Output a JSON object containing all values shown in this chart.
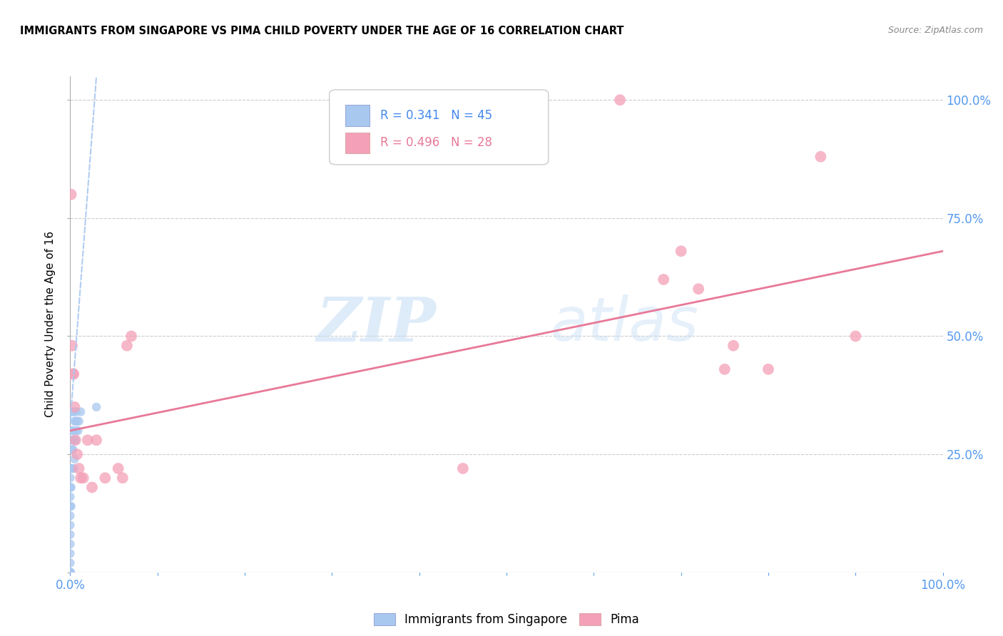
{
  "title": "IMMIGRANTS FROM SINGAPORE VS PIMA CHILD POVERTY UNDER THE AGE OF 16 CORRELATION CHART",
  "source": "Source: ZipAtlas.com",
  "ylabel": "Child Poverty Under the Age of 16",
  "legend_label_1": "Immigrants from Singapore",
  "legend_label_2": "Pima",
  "r1": 0.341,
  "n1": 45,
  "r2": 0.496,
  "n2": 28,
  "color1": "#a8c8f0",
  "color2": "#f4a0b8",
  "trendline1_color": "#a8c8f0",
  "trendline2_color": "#e87898",
  "blue_x": [
    0.0,
    0.0,
    0.0,
    0.0,
    0.0,
    0.0,
    0.0,
    0.0,
    0.0,
    0.0,
    0.0,
    0.0,
    0.0,
    0.0,
    0.0,
    0.0,
    0.0,
    0.0,
    0.0,
    0.0,
    0.001,
    0.001,
    0.001,
    0.001,
    0.002,
    0.002,
    0.002,
    0.003,
    0.003,
    0.003,
    0.004,
    0.004,
    0.004,
    0.005,
    0.005,
    0.005,
    0.006,
    0.006,
    0.007,
    0.007,
    0.008,
    0.009,
    0.01,
    0.012,
    0.03
  ],
  "blue_y": [
    0.0,
    0.0,
    0.0,
    0.0,
    0.0,
    0.0,
    0.0,
    0.0,
    0.0,
    0.0,
    0.02,
    0.04,
    0.06,
    0.08,
    0.1,
    0.12,
    0.14,
    0.16,
    0.18,
    0.2,
    0.14,
    0.18,
    0.22,
    0.28,
    0.22,
    0.26,
    0.3,
    0.26,
    0.3,
    0.34,
    0.22,
    0.28,
    0.34,
    0.24,
    0.28,
    0.32,
    0.28,
    0.32,
    0.3,
    0.34,
    0.32,
    0.3,
    0.32,
    0.34,
    0.35
  ],
  "pink_x": [
    0.001,
    0.002,
    0.003,
    0.004,
    0.005,
    0.006,
    0.008,
    0.01,
    0.012,
    0.015,
    0.02,
    0.025,
    0.03,
    0.04,
    0.055,
    0.06,
    0.065,
    0.07,
    0.45,
    0.63,
    0.68,
    0.7,
    0.72,
    0.75,
    0.76,
    0.8,
    0.86,
    0.9
  ],
  "pink_y": [
    0.8,
    0.48,
    0.42,
    0.42,
    0.35,
    0.28,
    0.25,
    0.22,
    0.2,
    0.2,
    0.28,
    0.18,
    0.28,
    0.2,
    0.22,
    0.2,
    0.48,
    0.5,
    0.22,
    1.0,
    0.62,
    0.68,
    0.6,
    0.43,
    0.48,
    0.43,
    0.88,
    0.5
  ],
  "blue_trend_x0": 0.0,
  "blue_trend_y0": 0.32,
  "blue_trend_x1": 0.03,
  "blue_trend_y1": 1.05,
  "pink_trend_x0": 0.0,
  "pink_trend_y0": 0.3,
  "pink_trend_x1": 1.0,
  "pink_trend_y1": 0.68,
  "xlim": [
    0.0,
    1.0
  ],
  "ylim": [
    0.0,
    1.05
  ],
  "xticks": [
    0.0,
    0.1,
    0.2,
    0.3,
    0.4,
    0.5,
    0.6,
    0.7,
    0.8,
    0.9,
    1.0
  ],
  "yticks": [
    0.0,
    0.25,
    0.5,
    0.75,
    1.0
  ]
}
